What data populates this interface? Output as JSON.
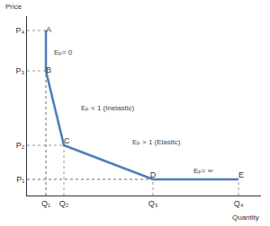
{
  "chart_data": {
    "type": "line",
    "xaxis_title": "Quantity",
    "yaxis_title": "Price",
    "color": "#4f7db8",
    "grid": false,
    "points": [
      {
        "label": "A",
        "x": 0.84,
        "y": 9.2
      },
      {
        "label": "B",
        "x": 0.84,
        "y": 6.95
      },
      {
        "label": "C",
        "x": 1.64,
        "y": 2.8
      },
      {
        "label": "D",
        "x": 5.6,
        "y": 0.9
      },
      {
        "label": "E",
        "x": 9.4,
        "y": 0.9
      }
    ],
    "annotations": [
      {
        "text": "Eₚ= 0",
        "x": 1.1,
        "y": 8.0
      },
      {
        "text": "Eₚ < 1 (Inelastic)",
        "x": 2.3,
        "y": 4.9
      },
      {
        "text": "Eₚ > 1 (Elastic)",
        "x": 4.6,
        "y": 3.0
      },
      {
        "text": "Eₚ= ∞",
        "x": 7.3,
        "y": 1.4
      }
    ],
    "xlim": [
      0,
      10.4
    ],
    "ylim": [
      0,
      10
    ],
    "xticks": [
      {
        "value": 0.84,
        "label": "Q₁"
      },
      {
        "value": 1.64,
        "label": "Q₂"
      },
      {
        "value": 5.6,
        "label": "Q₃"
      },
      {
        "value": 9.4,
        "label": "Q₄"
      }
    ],
    "yticks": [
      {
        "value": 0.9,
        "label": "P₁"
      },
      {
        "value": 2.8,
        "label": "P₂"
      },
      {
        "value": 6.95,
        "label": "P₃"
      },
      {
        "value": 9.2,
        "label": "P₄"
      }
    ]
  }
}
